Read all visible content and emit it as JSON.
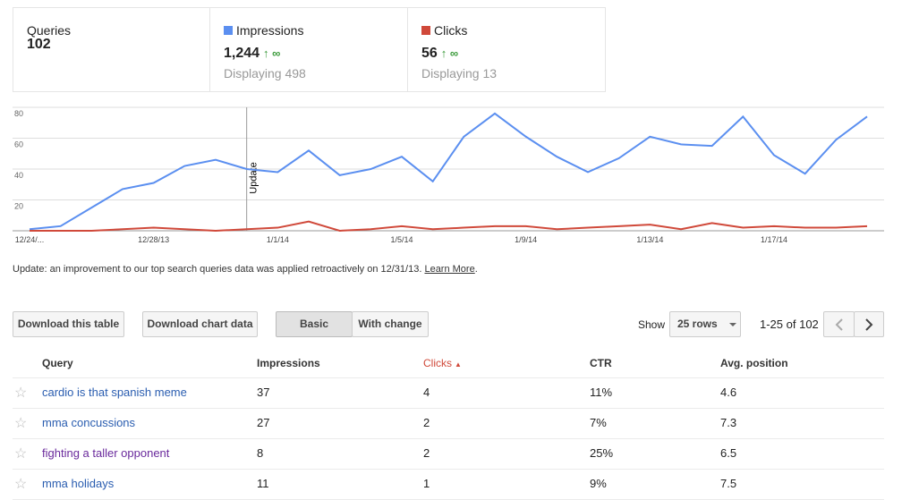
{
  "summary": {
    "queries": {
      "label": "Queries",
      "value": "102"
    },
    "impressions": {
      "value": "1,244",
      "change": "∞",
      "displaying": "Displaying 498"
    },
    "clicks": {
      "value": "56",
      "change": "∞",
      "displaying": "Displaying 13"
    }
  },
  "chart_data": {
    "type": "line",
    "categories": [
      "12/24/...",
      null,
      null,
      null,
      "12/28/13",
      null,
      null,
      null,
      "1/1/14",
      null,
      null,
      null,
      "1/5/14",
      null,
      null,
      null,
      "1/9/14",
      null,
      null,
      null,
      "1/13/14",
      null,
      null,
      null,
      "1/17/14",
      null,
      null,
      null
    ],
    "series": [
      {
        "name": "Impressions",
        "color": "#5b8ff0",
        "values": [
          1,
          3,
          15,
          27,
          31,
          42,
          46,
          40,
          38,
          52,
          36,
          40,
          48,
          32,
          61,
          76,
          61,
          48,
          38,
          47,
          61,
          56,
          55,
          74,
          49,
          37,
          59,
          74
        ]
      },
      {
        "name": "Clicks",
        "color": "#d0493a",
        "values": [
          0,
          0,
          0,
          1,
          2,
          1,
          0,
          1,
          2,
          6,
          0,
          1,
          3,
          1,
          2,
          3,
          3,
          1,
          2,
          3,
          4,
          1,
          5,
          2,
          3,
          2,
          2,
          3
        ]
      }
    ],
    "ylim": [
      0,
      80
    ],
    "yticks": [
      20,
      40,
      60,
      80
    ],
    "grid": true,
    "annotations": [
      {
        "text": "Update",
        "at": 7
      }
    ]
  },
  "notice": {
    "text": "Update: an improvement to our top search queries data was applied retroactively on 12/31/13.",
    "link": "Learn More"
  },
  "toolbar": {
    "download_table": "Download this table",
    "download_chart": "Download chart data",
    "basic": "Basic",
    "with_change": "With change",
    "show": "Show",
    "rows": "25 rows",
    "range": "1-25 of 102"
  },
  "table": {
    "headers": [
      "Query",
      "Impressions",
      "Clicks",
      "CTR",
      "Avg. position"
    ],
    "rows": [
      [
        "cardio is that spanish meme",
        "37",
        "4",
        "11%",
        "4.6"
      ],
      [
        "mma concussions",
        "27",
        "2",
        "7%",
        "7.3"
      ],
      [
        "fighting a taller opponent",
        "8",
        "2",
        "25%",
        "6.5"
      ],
      [
        "mma holidays",
        "11",
        "1",
        "9%",
        "7.5"
      ]
    ]
  }
}
